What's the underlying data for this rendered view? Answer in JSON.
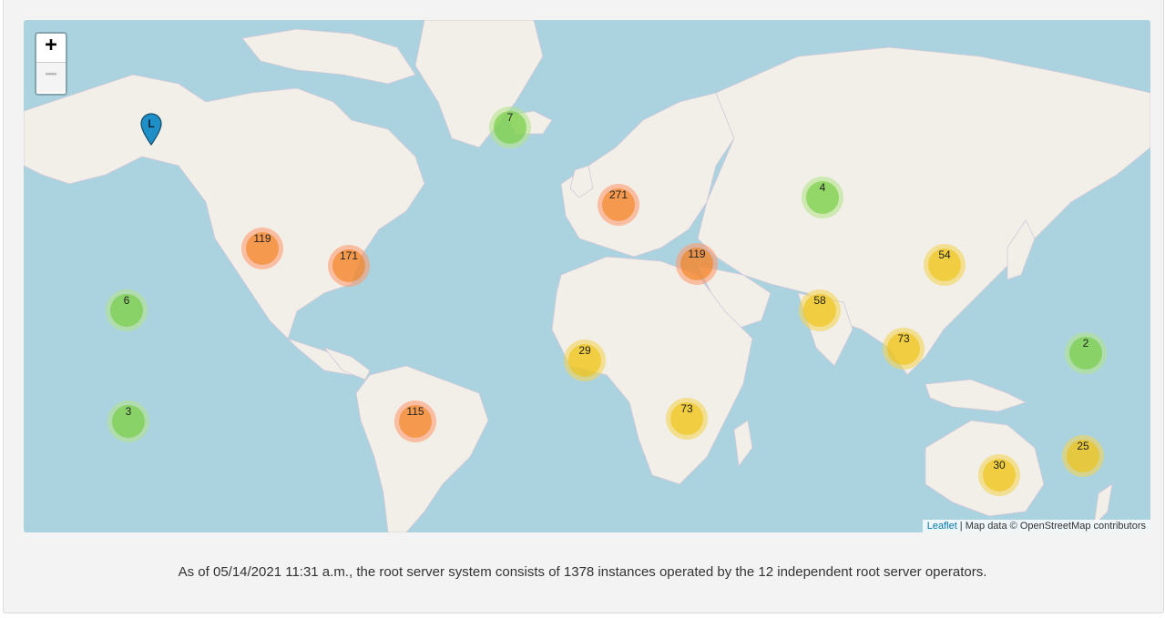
{
  "map": {
    "zoom_in_label": "+",
    "zoom_out_label": "−",
    "marker_label": "L",
    "clusters": [
      {
        "count": "7",
        "level": "small"
      },
      {
        "count": "271",
        "level": "large"
      },
      {
        "count": "4",
        "level": "small"
      },
      {
        "count": "119",
        "level": "large"
      },
      {
        "count": "171",
        "level": "large"
      },
      {
        "count": "119",
        "level": "large"
      },
      {
        "count": "54",
        "level": "medium"
      },
      {
        "count": "58",
        "level": "medium"
      },
      {
        "count": "6",
        "level": "small"
      },
      {
        "count": "73",
        "level": "medium"
      },
      {
        "count": "29",
        "level": "medium"
      },
      {
        "count": "2",
        "level": "small"
      },
      {
        "count": "3",
        "level": "small"
      },
      {
        "count": "115",
        "level": "large"
      },
      {
        "count": "73",
        "level": "medium"
      },
      {
        "count": "25",
        "level": "medium"
      },
      {
        "count": "30",
        "level": "medium"
      }
    ],
    "attribution": {
      "link_text": "Leaflet",
      "separator": " | ",
      "text": "Map data © OpenStreetMap contributors"
    }
  },
  "caption": "As of 05/14/2021 11:31 a.m., the root server system consists of 1378 instances operated by the 12 independent root server operators.",
  "colors": {
    "water": "#aad3df",
    "land": "#f2efe9",
    "marker": "#2a81cb"
  }
}
